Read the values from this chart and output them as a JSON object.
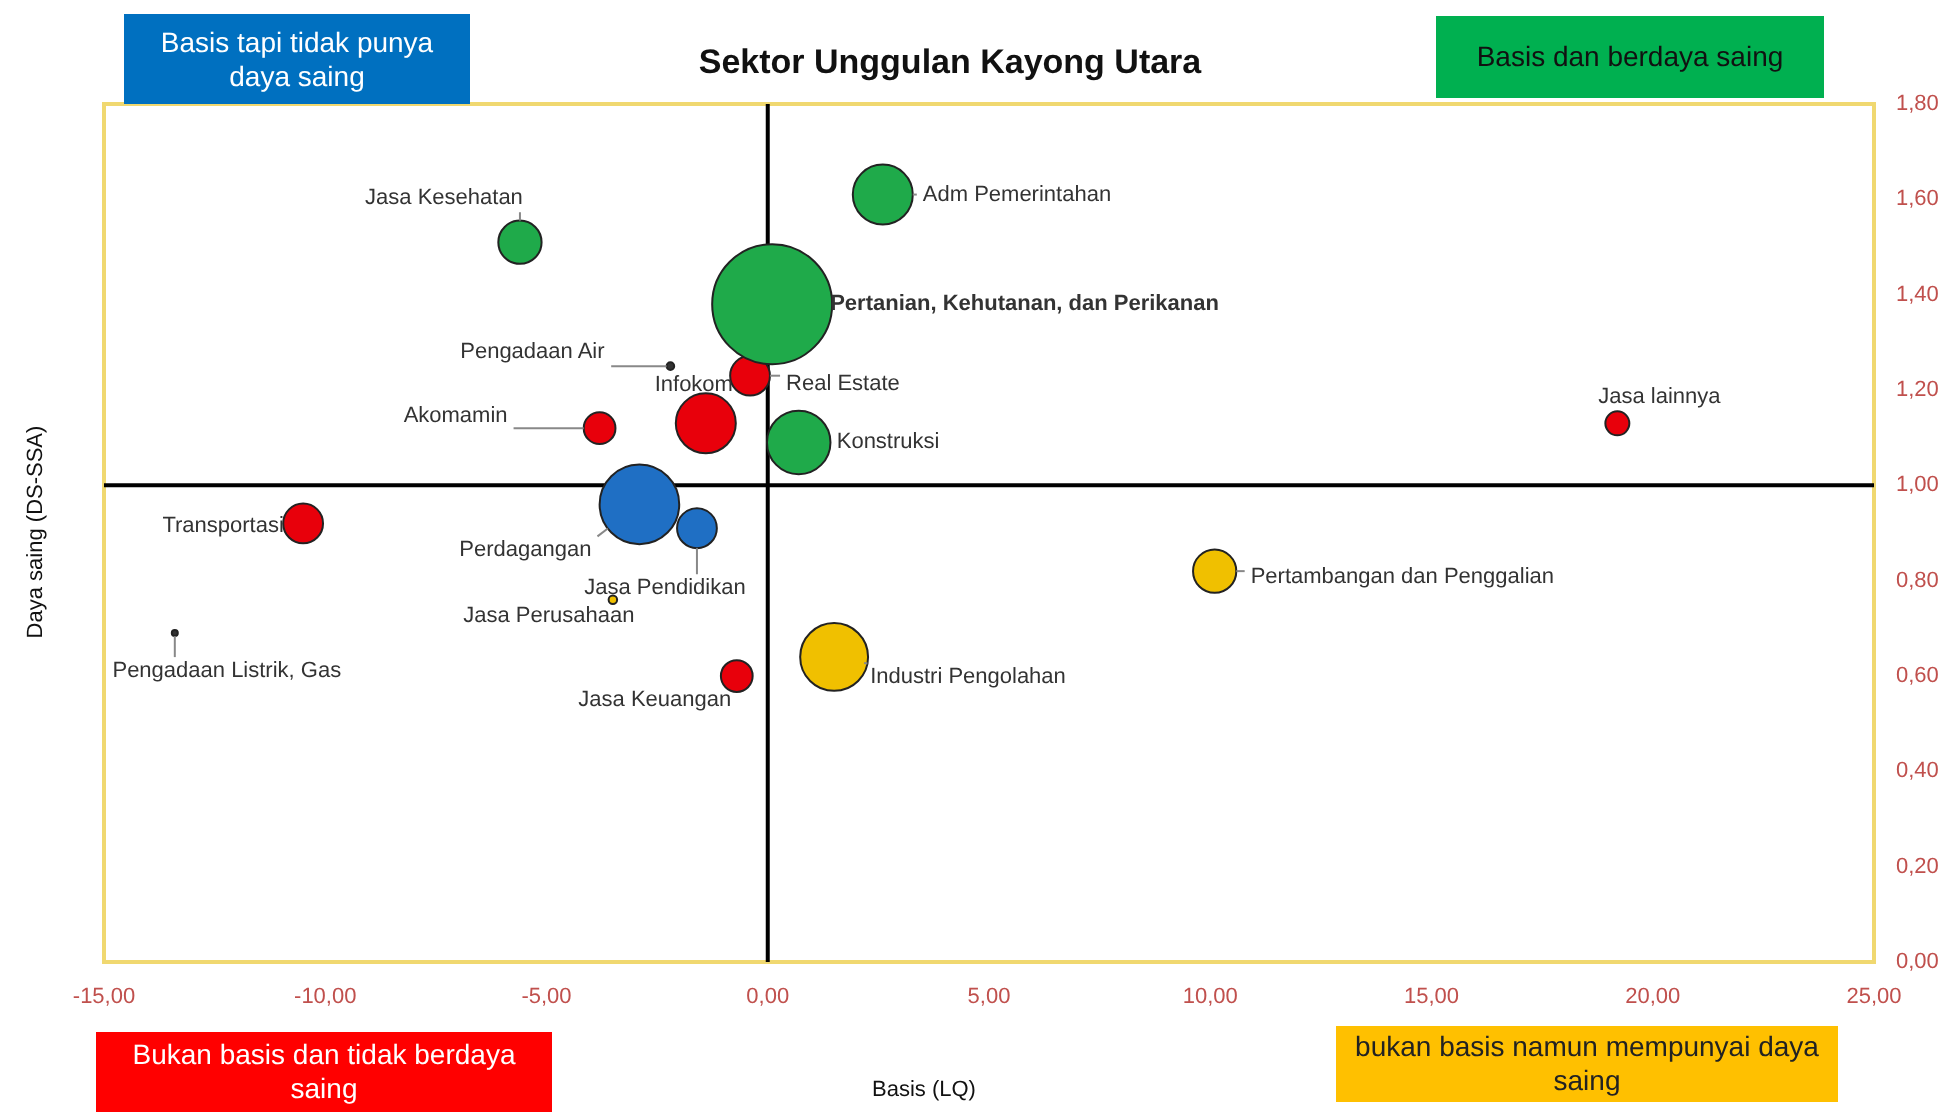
{
  "chart_data": {
    "type": "bubble",
    "title": "Sektor Unggulan Kayong Utara",
    "xlabel": "Basis (LQ)",
    "ylabel": "Daya saing (DS-SSA)",
    "xlim": [
      -15,
      25
    ],
    "xticks": [
      {
        "value": -15,
        "label": "-15,00"
      },
      {
        "value": -10,
        "label": "-10,00"
      },
      {
        "value": -5,
        "label": "-5,00"
      },
      {
        "value": 0,
        "label": "0,00"
      },
      {
        "value": 5,
        "label": "5,00"
      },
      {
        "value": 10,
        "label": "10,00"
      },
      {
        "value": 15,
        "label": "15,00"
      },
      {
        "value": 20,
        "label": "20,00"
      },
      {
        "value": 25,
        "label": "25,00"
      }
    ],
    "ylim": [
      0,
      1.8
    ],
    "yticks": [
      {
        "value": 0,
        "label": "0,00"
      },
      {
        "value": 0.2,
        "label": "0,20"
      },
      {
        "value": 0.4,
        "label": "0,40"
      },
      {
        "value": 0.6,
        "label": "0,60"
      },
      {
        "value": 0.8,
        "label": "0,80"
      },
      {
        "value": 1,
        "label": "1,00"
      },
      {
        "value": 1.2,
        "label": "1,20"
      },
      {
        "value": 1.4,
        "label": "1,40"
      },
      {
        "value": 1.6,
        "label": "1,60"
      },
      {
        "value": 1.8,
        "label": "1,80"
      }
    ],
    "grid": false,
    "legend": false,
    "ref_lines": [
      {
        "axis": "x",
        "value": 0,
        "color": "#000000"
      },
      {
        "axis": "y",
        "value": 1,
        "color": "#000000"
      }
    ],
    "series": [
      {
        "color": "#1faa4a",
        "x": [
          2.6,
          -5.6,
          0.1,
          0.7
        ],
        "values": [
          1.61,
          1.51,
          1.38,
          1.09
        ],
        "sizes": [
          0.25,
          0.13,
          1,
          0.28
        ]
      },
      {
        "color": "#e8000b",
        "x": [
          -0.4,
          -1.4,
          -3.8,
          19.2,
          -10.5,
          -0.7
        ],
        "values": [
          1.23,
          1.13,
          1.12,
          1.13,
          0.92,
          0.6
        ],
        "sizes": [
          0.11,
          0.25,
          0.07,
          0.04,
          0.11,
          0.07
        ]
      },
      {
        "color": "#1f6fc4",
        "x": [
          -2.9,
          -1.6
        ],
        "values": [
          0.96,
          0.91
        ],
        "sizes": [
          0.44,
          0.11
        ]
      },
      {
        "color": "#f0c000",
        "x": [
          1.5,
          10.1,
          -3.5
        ],
        "values": [
          0.64,
          0.82,
          0.76
        ],
        "sizes": [
          0.32,
          0.13,
          0.005
        ]
      },
      {
        "color": "#333333",
        "x": [
          -2.2,
          -13.4
        ],
        "values": [
          1.25,
          0.69
        ],
        "sizes": [
          0.004,
          0.002
        ]
      }
    ],
    "annotations": [
      "Basis tapi tidak punya daya saing",
      "Basis dan berdaya saing",
      "Bukan basis dan tidak berdaya saing",
      "bukan basis namun mempunyai daya saing",
      {
        "text": "Adm Pemerintahan",
        "x": 2.6,
        "y": 1.61
      },
      {
        "text": "Jasa Kesehatan",
        "x": -5.6,
        "y": 1.51
      },
      {
        "text": "Pertanian, Kehutanan, dan Perikanan",
        "x": 0.1,
        "y": 1.38
      },
      {
        "text": "Pengadaan Air",
        "x": -2.2,
        "y": 1.25
      },
      {
        "text": "Real Estate",
        "x": -0.4,
        "y": 1.23
      },
      {
        "text": "Infokom",
        "x": -1.4,
        "y": 1.13
      },
      {
        "text": "Akomamin",
        "x": -3.8,
        "y": 1.12
      },
      {
        "text": "Konstruksi",
        "x": 0.7,
        "y": 1.09
      },
      {
        "text": "Jasa lainnya",
        "x": 19.2,
        "y": 1.13
      },
      {
        "text": "Transportasi",
        "x": -10.5,
        "y": 0.92
      },
      {
        "text": "Perdagangan",
        "x": -2.9,
        "y": 0.96
      },
      {
        "text": "Jasa Pendidikan",
        "x": -1.6,
        "y": 0.91
      },
      {
        "text": "Jasa Perusahaan",
        "x": -3.5,
        "y": 0.76
      },
      {
        "text": "Pengadaan Listrik, Gas",
        "x": -13.4,
        "y": 0.69
      },
      {
        "text": "Jasa Keuangan",
        "x": -0.7,
        "y": 0.6
      },
      {
        "text": "Industri Pengolahan",
        "x": 1.5,
        "y": 0.64
      },
      {
        "text": "Pertambangan dan Penggalian",
        "x": 10.1,
        "y": 0.82
      }
    ]
  }
}
